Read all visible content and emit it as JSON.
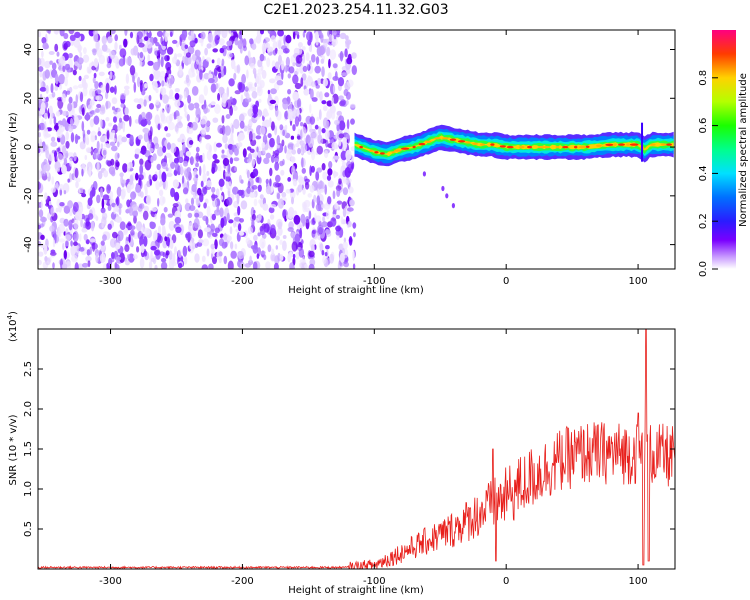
{
  "title": "C2E1.2023.254.11.32.G03",
  "chart_data": [
    {
      "type": "heatmap",
      "xlabel": "Height of straight line (km)",
      "ylabel": "Frequency (Hz)",
      "xlim": [
        -355,
        128
      ],
      "ylim": [
        -50,
        48
      ],
      "x_ticks": [
        -300,
        -200,
        -100,
        0,
        100
      ],
      "y_ticks": [
        -40,
        -20,
        0,
        20,
        40
      ],
      "noise_region_x": [
        -355,
        -115
      ],
      "signal_track": [
        {
          "x": -115,
          "y": 1
        },
        {
          "x": -110,
          "y": 0
        },
        {
          "x": -100,
          "y": -2
        },
        {
          "x": -90,
          "y": -3
        },
        {
          "x": -80,
          "y": -1
        },
        {
          "x": -70,
          "y": 0
        },
        {
          "x": -60,
          "y": 2
        },
        {
          "x": -50,
          "y": 4
        },
        {
          "x": -40,
          "y": 3
        },
        {
          "x": -30,
          "y": 2
        },
        {
          "x": -20,
          "y": 1
        },
        {
          "x": -10,
          "y": 1
        },
        {
          "x": 0,
          "y": 0
        },
        {
          "x": 20,
          "y": 0
        },
        {
          "x": 40,
          "y": 0
        },
        {
          "x": 60,
          "y": 0
        },
        {
          "x": 80,
          "y": 1
        },
        {
          "x": 100,
          "y": 1
        },
        {
          "x": 105,
          "y": -1
        },
        {
          "x": 110,
          "y": 1
        },
        {
          "x": 128,
          "y": 1
        }
      ],
      "spur_points": [
        {
          "x": -62,
          "y": -11
        },
        {
          "x": -48,
          "y": -17
        },
        {
          "x": -45,
          "y": -20
        },
        {
          "x": -40,
          "y": -24
        }
      ],
      "colorbar": {
        "label": "Normalized spectral amplitude",
        "range": [
          0,
          1
        ],
        "ticks": [
          0.0,
          0.2,
          0.4,
          0.6,
          0.8
        ]
      }
    },
    {
      "type": "line",
      "xlabel": "Height of straight line (km)",
      "ylabel": "SNR (10 * v/v)",
      "y_multiplier": "(x10",
      "y_multiplier_exp": "4",
      "y_multiplier_close": ")",
      "xlim": [
        -355,
        128
      ],
      "ylim": [
        0,
        3.0
      ],
      "x_ticks": [
        -300,
        -200,
        -100,
        0,
        100
      ],
      "y_ticks": [
        0.5,
        1.0,
        1.5,
        2.0,
        2.5
      ],
      "color": "#e8201c",
      "envelope": [
        {
          "x": -355,
          "y": 0.02
        },
        {
          "x": -120,
          "y": 0.02
        },
        {
          "x": -100,
          "y": 0.05
        },
        {
          "x": -80,
          "y": 0.2
        },
        {
          "x": -60,
          "y": 0.35
        },
        {
          "x": -40,
          "y": 0.5
        },
        {
          "x": -20,
          "y": 0.7
        },
        {
          "x": 0,
          "y": 0.9
        },
        {
          "x": 20,
          "y": 1.15
        },
        {
          "x": 40,
          "y": 1.35
        },
        {
          "x": 60,
          "y": 1.45
        },
        {
          "x": 80,
          "y": 1.45
        },
        {
          "x": 100,
          "y": 1.45
        },
        {
          "x": 128,
          "y": 1.4
        }
      ],
      "spikes": [
        {
          "x": -10,
          "y": 1.5
        },
        {
          "x": -8,
          "y": 0.1
        },
        {
          "x": 100,
          "y": 1.95
        },
        {
          "x": 104,
          "y": 0.05
        },
        {
          "x": 106,
          "y": 3.0
        },
        {
          "x": 108,
          "y": 0.1
        }
      ]
    }
  ]
}
